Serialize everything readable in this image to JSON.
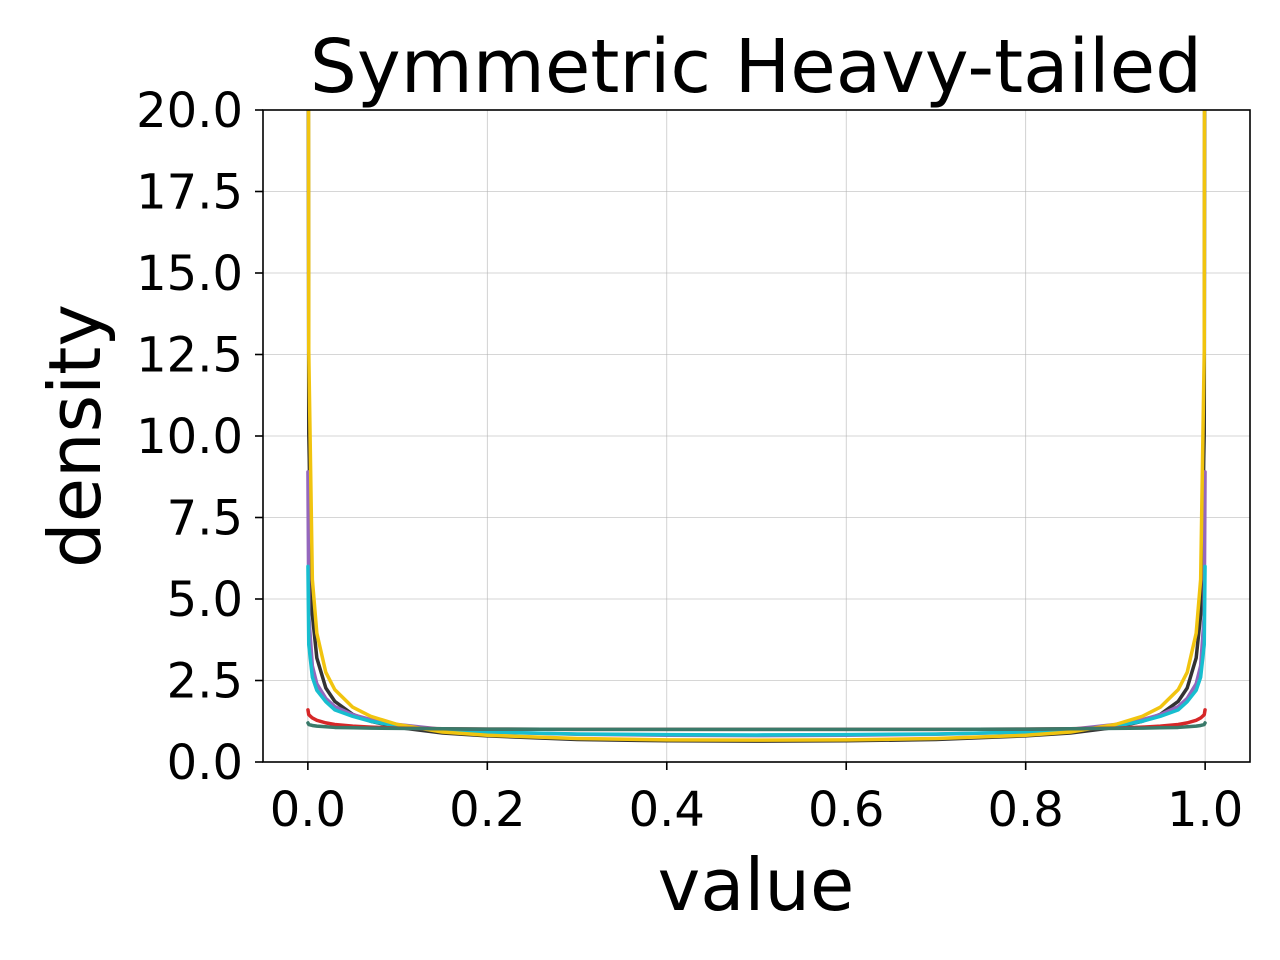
{
  "chart_data": {
    "type": "line",
    "title": "Symmetric Heavy-tailed",
    "xlabel": "value",
    "ylabel": "density",
    "xlim": [
      -0.05,
      1.05
    ],
    "ylim": [
      0,
      20
    ],
    "grid": true,
    "x_ticks": [
      "0.0",
      "0.2",
      "0.4",
      "0.6",
      "0.8",
      "1.0"
    ],
    "y_ticks": [
      "0.0",
      "2.5",
      "5.0",
      "7.5",
      "10.0",
      "12.5",
      "15.0",
      "17.5",
      "20.0"
    ],
    "x": [
      0.0001,
      0.001,
      0.005,
      0.01,
      0.02,
      0.03,
      0.05,
      0.07,
      0.1,
      0.15,
      0.2,
      0.3,
      0.4,
      0.5,
      0.6,
      0.7,
      0.8,
      0.85,
      0.9,
      0.93,
      0.95,
      0.97,
      0.98,
      0.99,
      0.995,
      0.999,
      0.9999
    ],
    "series": [
      {
        "color": "#333333",
        "values": [
          31.85,
          10.07,
          4.51,
          3.19,
          2.27,
          1.86,
          1.46,
          1.25,
          1.06,
          0.89,
          0.8,
          0.69,
          0.65,
          0.64,
          0.65,
          0.69,
          0.8,
          0.89,
          1.06,
          1.25,
          1.46,
          1.86,
          2.27,
          3.19,
          4.51,
          10.07,
          31.85
        ]
      },
      {
        "color": "#9467bd",
        "values": [
          8.9,
          4.5,
          2.95,
          2.4,
          1.95,
          1.7,
          1.45,
          1.3,
          1.15,
          1.0,
          0.92,
          0.85,
          0.82,
          0.81,
          0.82,
          0.85,
          0.92,
          1.0,
          1.15,
          1.3,
          1.45,
          1.7,
          1.95,
          2.4,
          2.95,
          4.5,
          8.9
        ]
      },
      {
        "color": "#17becf",
        "values": [
          6.0,
          3.6,
          2.6,
          2.2,
          1.85,
          1.6,
          1.4,
          1.25,
          1.1,
          0.98,
          0.92,
          0.86,
          0.84,
          0.83,
          0.84,
          0.86,
          0.92,
          0.98,
          1.1,
          1.25,
          1.4,
          1.6,
          1.85,
          2.2,
          2.6,
          3.6,
          6.0
        ]
      },
      {
        "color": "#f1c40f",
        "values": [
          40.0,
          12.6,
          5.6,
          3.95,
          2.75,
          2.22,
          1.68,
          1.4,
          1.15,
          0.92,
          0.82,
          0.72,
          0.68,
          0.67,
          0.68,
          0.72,
          0.82,
          0.92,
          1.15,
          1.4,
          1.68,
          2.22,
          2.75,
          3.95,
          5.6,
          12.6,
          40.0
        ]
      },
      {
        "color": "#d62728",
        "values": [
          1.6,
          1.45,
          1.35,
          1.28,
          1.2,
          1.15,
          1.1,
          1.07,
          1.04,
          1.02,
          1.01,
          1.0,
          1.0,
          1.0,
          1.0,
          1.0,
          1.01,
          1.02,
          1.04,
          1.07,
          1.1,
          1.15,
          1.2,
          1.28,
          1.35,
          1.45,
          1.6
        ]
      },
      {
        "color": "#3a7a6a",
        "values": [
          1.2,
          1.15,
          1.12,
          1.1,
          1.08,
          1.06,
          1.05,
          1.04,
          1.03,
          1.02,
          1.01,
          1.0,
          1.0,
          1.0,
          1.0,
          1.0,
          1.01,
          1.02,
          1.03,
          1.04,
          1.05,
          1.06,
          1.08,
          1.1,
          1.12,
          1.15,
          1.2
        ]
      }
    ]
  }
}
